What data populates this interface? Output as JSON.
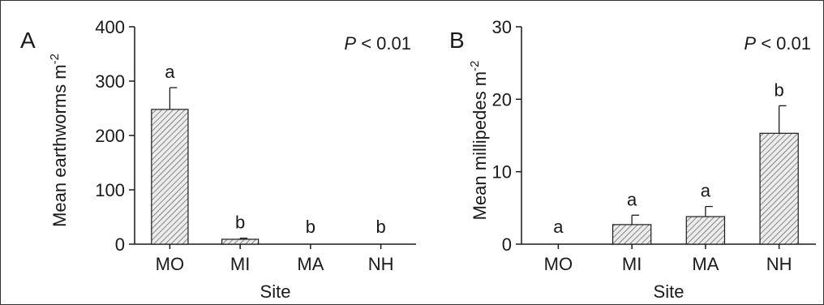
{
  "chart_data": [
    {
      "panel_label": "A",
      "type": "bar",
      "categories": [
        "MO",
        "MI",
        "MA",
        "NH"
      ],
      "values": [
        248,
        9,
        0,
        0
      ],
      "errors": [
        40,
        2,
        0,
        0
      ],
      "significance_letters": [
        "a",
        "b",
        "b",
        "b"
      ],
      "annotation_prefix": "P",
      "annotation_suffix": " < 0.01",
      "xlabel": "Site",
      "ylabel": "Mean earthworms  m",
      "ylabel_superscript": "-2",
      "ylim": [
        0,
        400
      ],
      "yticks": [
        "0",
        "100",
        "200",
        "300",
        "400"
      ],
      "bar_fill": "hatched",
      "grid": false
    },
    {
      "panel_label": "B",
      "type": "bar",
      "categories": [
        "MO",
        "MI",
        "MA",
        "NH"
      ],
      "values": [
        0,
        2.7,
        3.8,
        15.3
      ],
      "errors": [
        0,
        1.3,
        1.4,
        3.8
      ],
      "significance_letters": [
        "a",
        "a",
        "a",
        "b"
      ],
      "annotation_prefix": "P",
      "annotation_suffix": " < 0.01",
      "xlabel": "Site",
      "ylabel": "Mean millipedes  m",
      "ylabel_superscript": "-2",
      "ylim": [
        0,
        30
      ],
      "yticks": [
        "0",
        "10",
        "20",
        "30"
      ],
      "bar_fill": "hatched",
      "grid": false
    }
  ],
  "colors": {
    "ink": "#1a1a1a",
    "bar_fill": "#ececec",
    "hatch": "#5a5a5a"
  }
}
